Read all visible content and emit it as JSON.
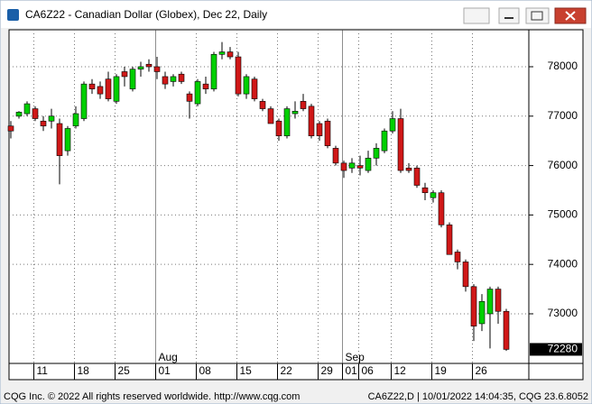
{
  "window_title": "CA6Z22 - Canadian Dollar (Globex), Dec 22, Daily",
  "footer_left": "CQG Inc. © 2022 All rights reserved worldwide. http://www.cqg.com",
  "footer_right": "CA6Z22,D | 10/01/2022 14:04:35, CQG 23.6.8052",
  "chart_data": {
    "type": "candlestick",
    "categories": [
      null,
      null,
      null,
      "11",
      null,
      null,
      null,
      null,
      "18",
      null,
      null,
      null,
      null,
      "25",
      null,
      null,
      null,
      null,
      "01",
      null,
      null,
      null,
      null,
      "08",
      null,
      null,
      null,
      null,
      "15",
      null,
      null,
      null,
      null,
      "22",
      null,
      null,
      null,
      null,
      "29",
      null,
      null,
      "01",
      null,
      "06",
      null,
      null,
      null,
      "12",
      null,
      null,
      null,
      null,
      "19",
      null,
      null,
      null,
      null,
      "26",
      null,
      null,
      null,
      null
    ],
    "month_labels": [
      null,
      null,
      null,
      null,
      null,
      null,
      null,
      null,
      null,
      null,
      null,
      null,
      null,
      null,
      null,
      null,
      null,
      null,
      "Aug",
      null,
      null,
      null,
      null,
      null,
      null,
      null,
      null,
      null,
      null,
      null,
      null,
      null,
      null,
      null,
      null,
      null,
      null,
      null,
      null,
      null,
      null,
      "Sep",
      null,
      null,
      null,
      null,
      null,
      null,
      null,
      null,
      null,
      null,
      null,
      null,
      null,
      null,
      null,
      null,
      null,
      null,
      null,
      null
    ],
    "open": [
      76800,
      77000,
      77050,
      77150,
      76900,
      76900,
      76850,
      76300,
      76800,
      76950,
      77650,
      77600,
      77750,
      77300,
      77900,
      77550,
      77950,
      78050,
      78000,
      77800,
      77700,
      77850,
      77450,
      77250,
      77650,
      77550,
      78250,
      78300,
      78200,
      77450,
      77750,
      77300,
      77150,
      76900,
      76600,
      77050,
      77300,
      77200,
      76850,
      76900,
      76350,
      76050,
      75950,
      76000,
      75900,
      76150,
      76300,
      76700,
      76950,
      75950,
      75950,
      75550,
      75350,
      75450,
      74800,
      74250,
      74050,
      73550,
      72800,
      73000,
      73500,
      73050
    ],
    "high": [
      76900,
      77100,
      77300,
      77200,
      77000,
      77150,
      76950,
      76800,
      77200,
      77700,
      77750,
      77700,
      77900,
      77850,
      78000,
      78000,
      78100,
      78150,
      78200,
      77900,
      77850,
      77900,
      77500,
      77750,
      77800,
      78300,
      78500,
      78400,
      78300,
      77850,
      77800,
      77350,
      77200,
      76950,
      77200,
      77300,
      77450,
      77250,
      76900,
      76950,
      76400,
      76100,
      76150,
      76200,
      76300,
      76450,
      76750,
      77100,
      77150,
      76050,
      76000,
      75650,
      75500,
      75500,
      74850,
      74300,
      74100,
      73600,
      73400,
      73550,
      73550,
      73100
    ],
    "low": [
      76550,
      76950,
      77000,
      76900,
      76700,
      76750,
      75620,
      76200,
      76750,
      76900,
      77450,
      77350,
      77300,
      77250,
      77600,
      77500,
      77800,
      77900,
      77750,
      77550,
      77600,
      77650,
      76950,
      77200,
      77450,
      77500,
      78150,
      78150,
      77400,
      77350,
      77300,
      77100,
      76850,
      76500,
      76550,
      76950,
      77100,
      76550,
      76500,
      76350,
      76000,
      75750,
      75850,
      75800,
      75850,
      76000,
      76250,
      76650,
      75850,
      75850,
      75550,
      75300,
      75250,
      74750,
      74200,
      73900,
      73450,
      72450,
      72650,
      72300,
      72800,
      72250
    ],
    "close": [
      76700,
      77080,
      77250,
      76950,
      76800,
      77000,
      76200,
      76750,
      77050,
      77650,
      77550,
      77450,
      77350,
      77800,
      77800,
      77950,
      78000,
      78000,
      77900,
      77650,
      77800,
      77700,
      77300,
      77700,
      77550,
      78250,
      78300,
      78200,
      77450,
      77800,
      77350,
      77150,
      76850,
      76600,
      77150,
      77100,
      77150,
      76600,
      76600,
      76400,
      76050,
      75900,
      76050,
      75950,
      76150,
      76350,
      76700,
      76950,
      75900,
      75900,
      75600,
      75450,
      75450,
      74800,
      74200,
      74050,
      73550,
      72750,
      73250,
      73500,
      73050,
      72280
    ],
    "up_color": "#00d000",
    "down_color": "#d01818",
    "ylim": [
      71996,
      78748
    ],
    "yticks": [
      73000,
      74000,
      75000,
      76000,
      77000,
      78000
    ],
    "grid": true
  }
}
